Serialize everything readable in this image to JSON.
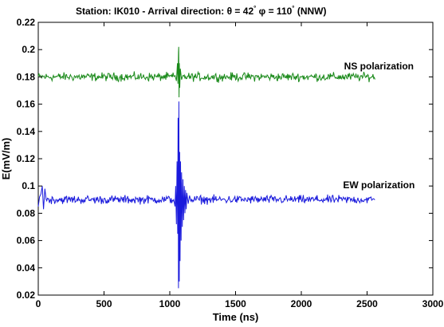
{
  "chart_data": {
    "type": "line",
    "title_parts": {
      "prefix": "Station: IK010 - Arrival direction: ",
      "theta_sym": "θ",
      "theta_val": " = 42",
      "deg": "°",
      "phi_sym": " φ",
      "phi_val": " = 110",
      "suffix": " (NNW)"
    },
    "xlabel": "Time (ns)",
    "ylabel": "E(mV/m)",
    "xlim": [
      0,
      3000
    ],
    "ylim": [
      0.02,
      0.22
    ],
    "x_ticks": [
      "0",
      "500",
      "1000",
      "1500",
      "2000",
      "2500",
      "3000"
    ],
    "y_ticks": [
      "0.02",
      "0.04",
      "0.06",
      "0.08",
      "0.1",
      "0.12",
      "0.14",
      "0.16",
      "0.18",
      "0.2",
      "0.22"
    ],
    "grid": false,
    "series": [
      {
        "name": "NS polarization",
        "color": "#1a8a1a",
        "baseline": 0.18,
        "noise": 0.0015,
        "x_range": [
          0,
          2560
        ],
        "pulse": {
          "x": [
            1040,
            1050,
            1058,
            1062,
            1066,
            1068,
            1070,
            1073,
            1076,
            1080,
            1090,
            1100
          ],
          "y": [
            0.181,
            0.177,
            0.19,
            0.175,
            0.198,
            0.202,
            0.165,
            0.19,
            0.172,
            0.186,
            0.178,
            0.181
          ]
        }
      },
      {
        "name": "EW polarization",
        "color": "#1a1adc",
        "baseline": 0.09,
        "noise": 0.0015,
        "x_range": [
          0,
          2560
        ],
        "start_spike": {
          "x": [
            0,
            10,
            20,
            30,
            40,
            50,
            60
          ],
          "y": [
            0.085,
            0.092,
            0.094,
            0.1,
            0.083,
            0.098,
            0.09
          ]
        },
        "pulse": {
          "x": [
            1030,
            1040,
            1045,
            1050,
            1055,
            1060,
            1063,
            1066,
            1069,
            1072,
            1075,
            1078,
            1082,
            1086,
            1090,
            1095,
            1100,
            1105,
            1110,
            1115,
            1120,
            1125,
            1130,
            1140,
            1150,
            1160
          ],
          "y": [
            0.09,
            0.085,
            0.1,
            0.072,
            0.118,
            0.065,
            0.15,
            0.025,
            0.162,
            0.03,
            0.125,
            0.045,
            0.118,
            0.06,
            0.11,
            0.07,
            0.105,
            0.075,
            0.1,
            0.08,
            0.097,
            0.083,
            0.095,
            0.087,
            0.093,
            0.089
          ]
        }
      }
    ]
  }
}
